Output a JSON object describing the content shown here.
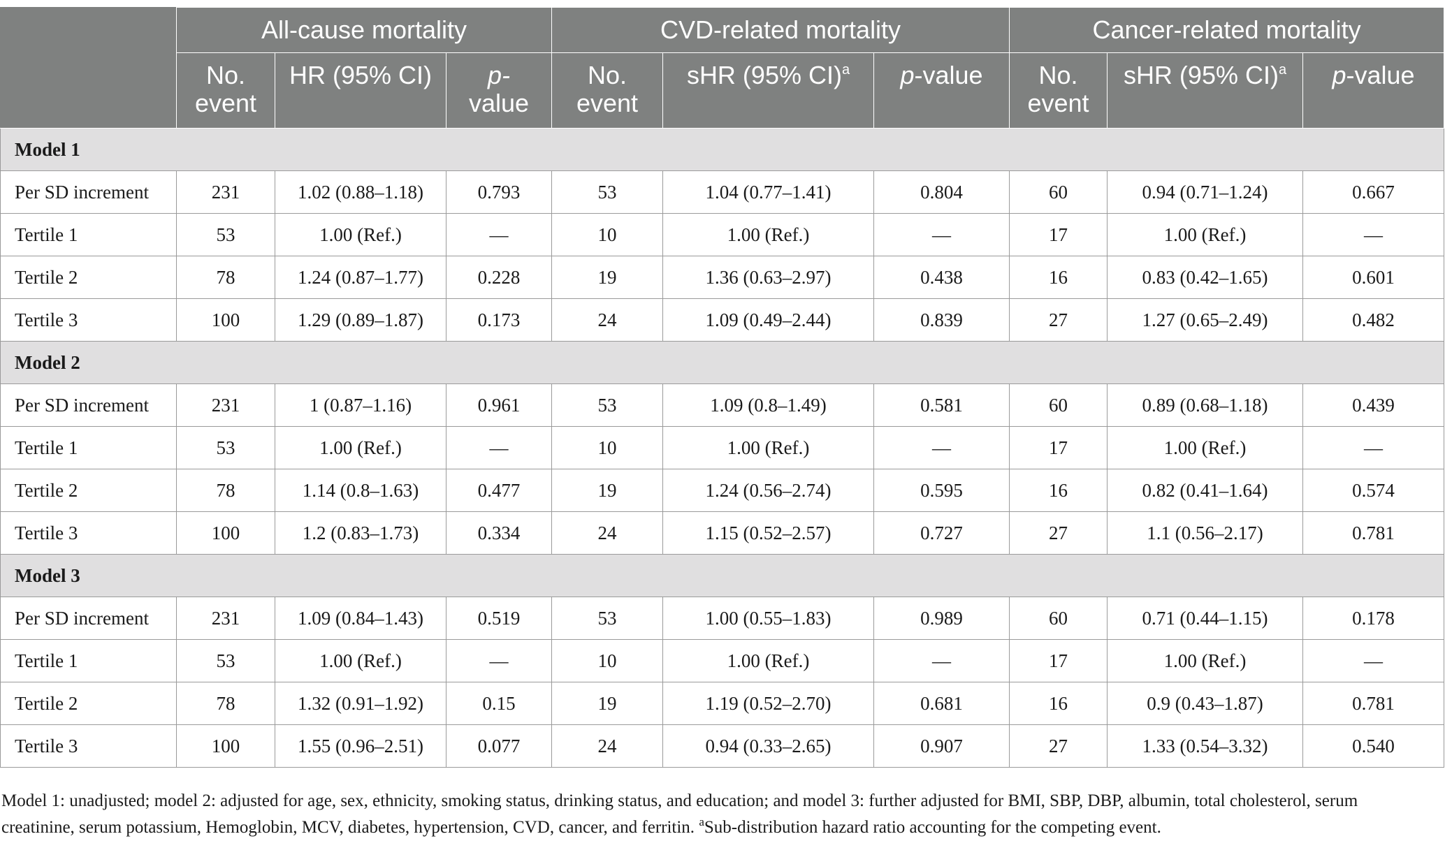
{
  "header": {
    "groups": [
      "All-cause mortality",
      "CVD-related mortality",
      "Cancer-related mortality"
    ],
    "no_event_line1": "No.",
    "no_event_line2": "event",
    "hr": "HR (95% CI)",
    "shr": "sHR (95% CI)",
    "shr_sup": "a",
    "p_all_line1": "p-",
    "p_all_line2": "value",
    "p_italic": "p",
    "p_suffix": "-value"
  },
  "models": [
    {
      "name": "Model 1",
      "rows": [
        {
          "label": "Per SD increment",
          "cells": [
            "231",
            "1.02 (0.88–1.18)",
            "0.793",
            "53",
            "1.04 (0.77–1.41)",
            "0.804",
            "60",
            "0.94 (0.71–1.24)",
            "0.667"
          ]
        },
        {
          "label": "Tertile 1",
          "cells": [
            "53",
            "1.00 (Ref.)",
            "—",
            "10",
            "1.00 (Ref.)",
            "—",
            "17",
            "1.00 (Ref.)",
            "—"
          ]
        },
        {
          "label": "Tertile 2",
          "cells": [
            "78",
            "1.24 (0.87–1.77)",
            "0.228",
            "19",
            "1.36 (0.63–2.97)",
            "0.438",
            "16",
            "0.83 (0.42–1.65)",
            "0.601"
          ]
        },
        {
          "label": "Tertile 3",
          "cells": [
            "100",
            "1.29 (0.89–1.87)",
            "0.173",
            "24",
            "1.09 (0.49–2.44)",
            "0.839",
            "27",
            "1.27 (0.65–2.49)",
            "0.482"
          ]
        }
      ]
    },
    {
      "name": "Model 2",
      "rows": [
        {
          "label": "Per SD increment",
          "cells": [
            "231",
            "1 (0.87–1.16)",
            "0.961",
            "53",
            "1.09 (0.8–1.49)",
            "0.581",
            "60",
            "0.89 (0.68–1.18)",
            "0.439"
          ]
        },
        {
          "label": "Tertile 1",
          "cells": [
            "53",
            "1.00 (Ref.)",
            "—",
            "10",
            "1.00 (Ref.)",
            "—",
            "17",
            "1.00 (Ref.)",
            "—"
          ]
        },
        {
          "label": "Tertile 2",
          "cells": [
            "78",
            "1.14 (0.8–1.63)",
            "0.477",
            "19",
            "1.24 (0.56–2.74)",
            "0.595",
            "16",
            "0.82 (0.41–1.64)",
            "0.574"
          ]
        },
        {
          "label": "Tertile 3",
          "cells": [
            "100",
            "1.2 (0.83–1.73)",
            "0.334",
            "24",
            "1.15 (0.52–2.57)",
            "0.727",
            "27",
            "1.1 (0.56–2.17)",
            "0.781"
          ]
        }
      ]
    },
    {
      "name": "Model 3",
      "rows": [
        {
          "label": "Per SD increment",
          "cells": [
            "231",
            "1.09 (0.84–1.43)",
            "0.519",
            "53",
            "1.00 (0.55–1.83)",
            "0.989",
            "60",
            "0.71 (0.44–1.15)",
            "0.178"
          ]
        },
        {
          "label": "Tertile 1",
          "cells": [
            "53",
            "1.00 (Ref.)",
            "—",
            "10",
            "1.00 (Ref.)",
            "—",
            "17",
            "1.00 (Ref.)",
            "—"
          ]
        },
        {
          "label": "Tertile 2",
          "cells": [
            "78",
            "1.32 (0.91–1.92)",
            "0.15",
            "19",
            "1.19 (0.52–2.70)",
            "0.681",
            "16",
            "0.9 (0.43–1.87)",
            "0.781"
          ]
        },
        {
          "label": "Tertile 3",
          "cells": [
            "100",
            "1.55 (0.96–2.51)",
            "0.077",
            "24",
            "0.94 (0.33–2.65)",
            "0.907",
            "27",
            "1.33 (0.54–3.32)",
            "0.540"
          ]
        }
      ]
    }
  ],
  "footnote": {
    "text": "Model 1: unadjusted; model 2: adjusted for age, sex, ethnicity, smoking status, drinking status, and education; and model 3: further adjusted for BMI, SBP, DBP, albumin, total cholesterol, serum creatinine, serum potassium, Hemoglobin, MCV, diabetes, hypertension, CVD, cancer, and ferritin. ",
    "sup": "a",
    "sup_text": "Sub-distribution hazard ratio accounting for the competing event."
  }
}
